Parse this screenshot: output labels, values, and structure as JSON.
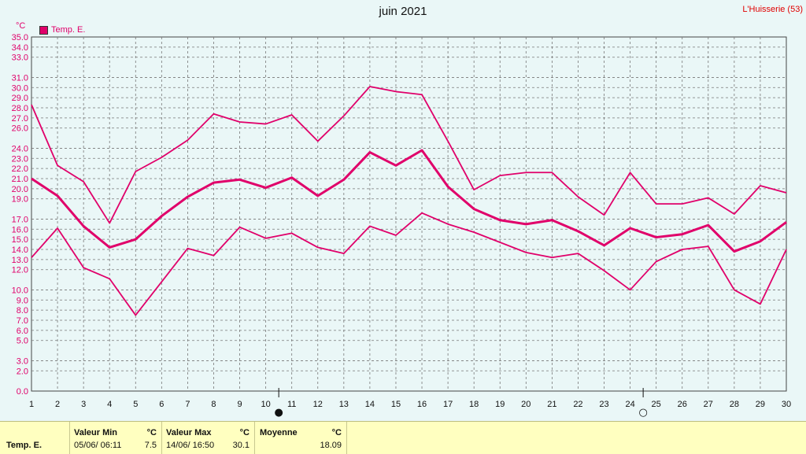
{
  "header": {
    "title": "juin 2021",
    "station": "L'Huisserie (53)",
    "unit": "°C"
  },
  "legend": {
    "label": "Temp. E.",
    "color": "#e0006a"
  },
  "chart_data": {
    "type": "line",
    "x": [
      1,
      2,
      3,
      4,
      5,
      6,
      7,
      8,
      9,
      10,
      11,
      12,
      13,
      14,
      15,
      16,
      17,
      18,
      19,
      20,
      21,
      22,
      23,
      24,
      25,
      26,
      27,
      28,
      29,
      30
    ],
    "x_tick_labels": [
      "1",
      "2",
      "3",
      "4",
      "5",
      "6",
      "7",
      "8",
      "9",
      "10",
      "11",
      "12",
      "13",
      "14",
      "15",
      "16",
      "17",
      "18",
      "19",
      "20",
      "21",
      "22",
      "23",
      "24",
      "25",
      "26",
      "27",
      "28",
      "29",
      "30"
    ],
    "y_tick_labels": [
      "0.0",
      "2.0",
      "3.0",
      "5.0",
      "6.0",
      "7.0",
      "8.0",
      "9.0",
      "10.0",
      "12.0",
      "13.0",
      "14.0",
      "15.0",
      "16.0",
      "17.0",
      "19.0",
      "20.0",
      "21.0",
      "22.0",
      "23.0",
      "24.0",
      "26.0",
      "27.0",
      "28.0",
      "29.0",
      "30.0",
      "31.0",
      "33.0",
      "34.0",
      "35.0"
    ],
    "ylim": [
      0,
      35
    ],
    "grid": true,
    "legend_position": "top-left",
    "series": [
      {
        "values": [
          28.3,
          22.3,
          20.7,
          16.6,
          21.7,
          23.1,
          24.8,
          27.4,
          26.6,
          26.4,
          27.3,
          24.7,
          27.2,
          30.1,
          29.6,
          29.3,
          24.7,
          19.9,
          21.3,
          21.6,
          21.6,
          19.2,
          17.4,
          21.6,
          18.5,
          18.5,
          19.1,
          17.5,
          20.3,
          19.6
        ]
      },
      {
        "values": [
          21.0,
          19.3,
          16.3,
          14.2,
          15.0,
          17.3,
          19.2,
          20.6,
          20.9,
          20.1,
          21.1,
          19.3,
          20.9,
          23.6,
          22.3,
          23.8,
          20.2,
          18.0,
          16.9,
          16.5,
          16.9,
          15.8,
          14.4,
          16.1,
          15.2,
          15.5,
          16.4,
          13.8,
          14.8,
          16.7
        ]
      },
      {
        "values": [
          13.2,
          16.1,
          12.2,
          11.1,
          7.5,
          10.8,
          14.1,
          13.4,
          16.2,
          15.1,
          15.6,
          14.2,
          13.6,
          16.3,
          15.4,
          17.6,
          16.5,
          15.7,
          14.7,
          13.7,
          13.2,
          13.6,
          11.9,
          10.0,
          12.8,
          14.0,
          14.3,
          10.0,
          8.6,
          14.0
        ]
      }
    ],
    "markers": [
      {
        "day": 10.5,
        "symbol": "●"
      },
      {
        "day": 24.5,
        "symbol": "○"
      }
    ]
  },
  "footer": {
    "series_label": "Temp. E.",
    "min": {
      "header": "Valeur Min",
      "unit": "°C",
      "date": "05/06/ 06:11",
      "value": "7.5"
    },
    "max": {
      "header": "Valeur Max",
      "unit": "°C",
      "date": "14/06/ 16:50",
      "value": "30.1"
    },
    "avg": {
      "header": "Moyenne",
      "unit": "°C",
      "value": "18.09"
    }
  },
  "colors": {
    "line": "#e0006a",
    "background": "#eaf7f7",
    "footer": "#ffffc0"
  }
}
